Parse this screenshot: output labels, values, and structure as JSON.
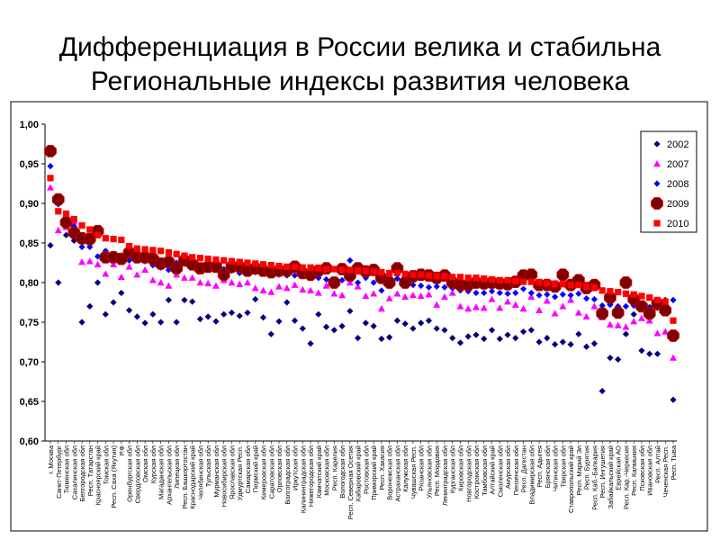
{
  "slide": {
    "title_line1": "Дифференциация в России велика и стабильна",
    "title_line2": "Региональные индексы развития человека"
  },
  "chart_data": {
    "type": "scatter",
    "title": "",
    "xlabel": "",
    "ylabel": "",
    "ylim": [
      0.6,
      1.0
    ],
    "yticks": [
      "0,60",
      "0,65",
      "0,70",
      "0,75",
      "0,80",
      "0,85",
      "0,90",
      "0,95",
      "1,00"
    ],
    "grid": false,
    "legend_position": "right",
    "categories": [
      "г. Москва",
      "Санкт-Петербург",
      "Тюменская обл",
      "Сахалинская обл",
      "Белгородская обл",
      "Респ. Татарстан",
      "Красноярский край",
      "Томская обл",
      "Респ. Саха (Якутия)",
      "Р.Ф",
      "Оренбургская обл",
      "Свердловская обл",
      "Омская обл",
      "Курская обл",
      "Магаданская обл",
      "Архангельская обл",
      "Липецкая обл",
      "Респ. Башкортостан",
      "Краснодарский край",
      "Челябинская обл",
      "Тульская обл",
      "Мурманская обл",
      "Новосибирская обл",
      "Ярославская обл",
      "Удмуртская Респ.",
      "Самарская обл",
      "Пермский край",
      "Кемеровская обл",
      "Саратовская обл",
      "Орловская обл",
      "Волгоградская обл",
      "Иркутская обл",
      "Калининградская обл",
      "Нижегородская обл",
      "Камчатский край",
      "Московская обл",
      "Респ. Карелия",
      "Вологодская обл",
      "Респ. Северная Осетия",
      "Хабаровский край",
      "Ростовская обл",
      "Приморский край",
      "Респ. Хакасия",
      "Воронежская обл",
      "Астраханская обл",
      "Калужская обл",
      "Чувашская Респ.",
      "Рязанская обл",
      "Ульяновская обл",
      "Респ. Мордовия",
      "Ленинградская обл",
      "Курганская обл",
      "Кировская обл",
      "Новгородская обл",
      "Костромская обл",
      "Тамбовская обл",
      "Алтайский край",
      "Смоленская обл",
      "Амурская обл",
      "Пензенская обл",
      "Респ. Дагестан",
      "Владимирская обл",
      "Респ. Адыгея",
      "Брянская обл",
      "Читинская обл",
      "Тверская обл",
      "Ставропольский край",
      "Респ. Марий Эл",
      "Респ. Бурятия",
      "Респ. Каб.-Балкария",
      "Респ. Ингушетия",
      "Забайкальский край",
      "Еврейская АО",
      "Респ. Кар.-Черкесия",
      "Респ. Калмыкия",
      "Псковская обл",
      "Ивановская обл",
      "Респ. Алтай",
      "Чеченская Респ.",
      "Респ. Тыва"
    ],
    "series": [
      {
        "name": "2002",
        "color": "#000080",
        "marker": "diamond",
        "values": [
          0.847,
          0.8,
          0.86,
          0.853,
          0.75,
          0.77,
          0.8,
          0.76,
          0.775,
          0.787,
          0.765,
          0.757,
          0.749,
          0.76,
          0.75,
          0.778,
          0.75,
          0.778,
          0.776,
          0.754,
          0.757,
          0.751,
          0.76,
          0.762,
          0.758,
          0.762,
          0.779,
          0.756,
          0.735,
          0.751,
          0.775,
          0.752,
          0.742,
          0.723,
          0.76,
          0.744,
          0.74,
          0.745,
          0.764,
          0.73,
          0.749,
          0.745,
          0.729,
          0.731,
          0.752,
          0.748,
          0.742,
          0.749,
          0.752,
          0.742,
          0.74,
          0.73,
          0.724,
          0.732,
          0.734,
          0.729,
          0.74,
          0.729,
          0.734,
          0.73,
          0.738,
          0.74,
          0.725,
          0.73,
          0.722,
          0.725,
          0.722,
          0.735,
          0.719,
          0.723,
          0.663,
          0.705,
          0.703,
          0.735,
          0.76,
          0.714,
          0.71,
          0.71,
          0.778,
          0.652
        ]
      },
      {
        "name": "2007",
        "color": "#ff00ff",
        "marker": "triangle",
        "values": [
          0.92,
          0.866,
          0.87,
          0.877,
          0.826,
          0.827,
          0.823,
          0.811,
          0.823,
          0.807,
          0.82,
          0.81,
          0.816,
          0.803,
          0.8,
          0.796,
          0.81,
          0.806,
          0.806,
          0.8,
          0.799,
          0.796,
          0.803,
          0.8,
          0.798,
          0.8,
          0.793,
          0.79,
          0.788,
          0.795,
          0.793,
          0.797,
          0.791,
          0.79,
          0.787,
          0.796,
          0.786,
          0.784,
          0.8,
          0.795,
          0.783,
          0.786,
          0.767,
          0.78,
          0.786,
          0.782,
          0.784,
          0.783,
          0.785,
          0.772,
          0.782,
          0.787,
          0.77,
          0.767,
          0.769,
          0.768,
          0.779,
          0.768,
          0.776,
          0.772,
          0.767,
          0.782,
          0.765,
          0.777,
          0.761,
          0.77,
          0.778,
          0.762,
          0.757,
          0.77,
          0.756,
          0.747,
          0.746,
          0.744,
          0.751,
          0.755,
          0.752,
          0.736,
          0.738,
          0.705
        ]
      },
      {
        "name": "2008",
        "color": "#0000ff",
        "marker": "diamond",
        "values": [
          0.947,
          0.899,
          0.872,
          0.871,
          0.845,
          0.845,
          0.833,
          0.84,
          0.83,
          0.829,
          0.828,
          0.828,
          0.827,
          0.822,
          0.819,
          0.816,
          0.825,
          0.824,
          0.822,
          0.82,
          0.82,
          0.819,
          0.817,
          0.815,
          0.812,
          0.814,
          0.813,
          0.812,
          0.811,
          0.81,
          0.809,
          0.809,
          0.808,
          0.806,
          0.806,
          0.804,
          0.801,
          0.803,
          0.828,
          0.8,
          0.806,
          0.8,
          0.79,
          0.798,
          0.805,
          0.798,
          0.797,
          0.796,
          0.794,
          0.795,
          0.794,
          0.793,
          0.79,
          0.789,
          0.787,
          0.787,
          0.789,
          0.787,
          0.786,
          0.787,
          0.792,
          0.787,
          0.784,
          0.785,
          0.782,
          0.785,
          0.784,
          0.786,
          0.78,
          0.779,
          0.771,
          0.772,
          0.77,
          0.77,
          0.771,
          0.77,
          0.769,
          0.768,
          0.768,
          0.778
        ]
      },
      {
        "name": "2009",
        "color": "#800000",
        "marker": "octagon",
        "values": [
          0.966,
          0.905,
          0.876,
          0.863,
          0.856,
          0.855,
          0.865,
          0.832,
          0.832,
          0.83,
          0.838,
          0.832,
          0.832,
          0.83,
          0.824,
          0.826,
          0.818,
          0.828,
          0.823,
          0.818,
          0.82,
          0.82,
          0.81,
          0.82,
          0.82,
          0.815,
          0.818,
          0.815,
          0.813,
          0.815,
          0.815,
          0.82,
          0.812,
          0.81,
          0.815,
          0.818,
          0.8,
          0.817,
          0.809,
          0.818,
          0.814,
          0.816,
          0.806,
          0.8,
          0.818,
          0.8,
          0.808,
          0.81,
          0.809,
          0.806,
          0.809,
          0.8,
          0.797,
          0.797,
          0.8,
          0.799,
          0.8,
          0.799,
          0.798,
          0.801,
          0.809,
          0.81,
          0.797,
          0.797,
          0.795,
          0.81,
          0.797,
          0.803,
          0.793,
          0.797,
          0.761,
          0.781,
          0.762,
          0.8,
          0.779,
          0.77,
          0.761,
          0.773,
          0.765,
          0.733
        ]
      },
      {
        "name": "2010",
        "color": "#ff0000",
        "marker": "square",
        "values": [
          0.932,
          0.89,
          0.887,
          0.88,
          0.872,
          0.867,
          0.86,
          0.856,
          0.855,
          0.854,
          0.846,
          0.843,
          0.842,
          0.841,
          0.84,
          0.838,
          0.836,
          0.834,
          0.832,
          0.831,
          0.83,
          0.829,
          0.828,
          0.827,
          0.826,
          0.825,
          0.824,
          0.823,
          0.822,
          0.821,
          0.82,
          0.82,
          0.819,
          0.819,
          0.818,
          0.817,
          0.817,
          0.816,
          0.816,
          0.815,
          0.815,
          0.814,
          0.813,
          0.812,
          0.812,
          0.811,
          0.81,
          0.81,
          0.809,
          0.808,
          0.808,
          0.807,
          0.807,
          0.806,
          0.806,
          0.805,
          0.804,
          0.803,
          0.803,
          0.802,
          0.801,
          0.801,
          0.8,
          0.799,
          0.798,
          0.798,
          0.797,
          0.797,
          0.795,
          0.794,
          0.79,
          0.789,
          0.788,
          0.786,
          0.785,
          0.783,
          0.781,
          0.778,
          0.776,
          0.752
        ]
      }
    ]
  }
}
